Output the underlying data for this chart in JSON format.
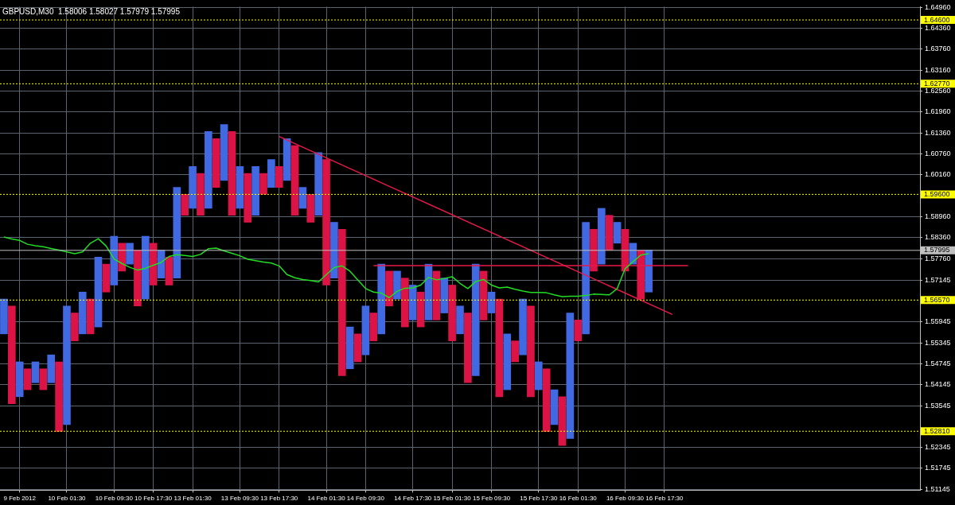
{
  "chart_data": {
    "type": "bar",
    "title": "GBPUSD,M30  1.58006 1.58027 1.57979 1.57995",
    "categories": [
      null,
      null,
      "9 Feb 2012",
      null,
      null,
      null,
      null,
      null,
      "10 Feb 01:30",
      null,
      null,
      null,
      null,
      null,
      "10 Feb 09:30",
      null,
      null,
      null,
      null,
      "10 Feb 17:30",
      null,
      null,
      null,
      null,
      "13 Feb 01:30",
      null,
      null,
      null,
      null,
      null,
      "13 Feb 09:30",
      null,
      null,
      null,
      null,
      "13 Feb 17:30",
      null,
      null,
      null,
      null,
      null,
      "14 Feb 01:30",
      null,
      null,
      null,
      null,
      "14 Feb 09:30",
      null,
      null,
      null,
      null,
      null,
      "14 Feb 17:30",
      null,
      null,
      null,
      null,
      "15 Feb 01:30",
      null,
      null,
      null,
      null,
      "15 Feb 09:30",
      null,
      null,
      null,
      null,
      null,
      "15 Feb 17:30",
      null,
      null,
      null,
      null,
      "16 Feb 01:30",
      null,
      null,
      null,
      null,
      null,
      "16 Feb 09:30",
      null,
      null,
      null,
      null,
      "16 Feb 17:30",
      null,
      null,
      null,
      null,
      null,
      null,
      null,
      null,
      null,
      null,
      null,
      null,
      null,
      null,
      null,
      null,
      null,
      null,
      null,
      null,
      null,
      null,
      null,
      null,
      null,
      null,
      null,
      null,
      null,
      null,
      null,
      null
    ],
    "ylim": [
      1.5112,
      1.6498
    ],
    "yticks": [
      {
        "value": 1.6496,
        "label": "1.64960"
      },
      {
        "value": 1.6436,
        "label": "1.64360"
      },
      {
        "value": 1.6376,
        "label": "1.63760"
      },
      {
        "value": 1.6316,
        "label": "1.63160"
      },
      {
        "value": 1.6256,
        "label": "1.62560"
      },
      {
        "value": 1.6196,
        "label": "1.61960"
      },
      {
        "value": 1.6136,
        "label": "1.61360"
      },
      {
        "value": 1.6076,
        "label": "1.60760"
      },
      {
        "value": 1.6016,
        "label": "1.60160"
      },
      {
        "value": 1.5896,
        "label": "1.58960"
      },
      {
        "value": 1.5836,
        "label": "1.58360"
      },
      {
        "value": 1.5776,
        "label": "1.57760"
      },
      {
        "value": 1.57145,
        "label": "1.57145"
      },
      {
        "value": 1.55945,
        "label": "1.55945"
      },
      {
        "value": 1.55345,
        "label": "1.55345"
      },
      {
        "value": 1.54745,
        "label": "1.54745"
      },
      {
        "value": 1.54145,
        "label": "1.54145"
      },
      {
        "value": 1.53545,
        "label": "1.53545"
      },
      {
        "value": 1.52345,
        "label": "1.52345"
      },
      {
        "value": 1.51745,
        "label": "1.51745"
      },
      {
        "value": 1.51145,
        "label": "1.51145"
      }
    ],
    "grid": true,
    "legend": false,
    "marker": "none",
    "ref_lines": [
      {
        "axis": "y",
        "value": 1.646,
        "label": "1.64600",
        "color": "#ffff00",
        "line_style": "dotted"
      },
      {
        "axis": "y",
        "value": 1.6277,
        "label": "1.62770",
        "color": "#ffff00",
        "line_style": "dotted"
      },
      {
        "axis": "y",
        "value": 1.596,
        "label": "1.59600",
        "color": "#ffff00",
        "line_style": "dotted"
      },
      {
        "axis": "y",
        "value": 1.5657,
        "label": "1.56570",
        "color": "#ffff00",
        "line_style": "dotted"
      },
      {
        "axis": "y",
        "value": 1.5281,
        "label": "1.52810",
        "color": "#ffff00",
        "line_style": "dotted"
      },
      {
        "axis": "y",
        "value": 1.57995,
        "label": "1.57995",
        "color": "#c0c0c0",
        "line_style": "solid"
      }
    ],
    "series": [
      {
        "base": [
          1.556,
          1.536,
          1.538,
          1.54,
          1.542,
          1.54,
          1.542,
          1.528,
          1.53,
          1.554,
          1.556,
          1.556,
          1.558,
          1.568,
          1.57,
          1.574,
          1.576,
          1.564,
          1.566,
          1.57,
          1.572,
          1.57,
          1.572,
          1.59,
          1.592,
          1.59,
          1.592,
          1.598,
          1.6,
          1.59,
          1.592,
          1.588,
          1.59,
          1.596,
          1.598,
          1.598,
          1.6,
          1.59,
          1.592,
          1.588,
          1.59,
          1.57,
          1.572,
          1.544,
          1.546,
          1.548,
          1.55,
          1.554,
          1.556,
          1.564,
          1.566,
          1.558,
          1.56,
          1.558,
          1.56,
          1.56,
          1.562,
          1.554,
          1.556,
          1.542,
          1.544,
          1.56,
          1.562,
          1.538,
          1.54,
          1.548,
          1.55,
          1.538,
          1.54,
          1.528,
          1.53,
          1.524,
          1.526,
          1.554,
          1.556,
          1.574,
          1.576,
          1.58,
          1.582,
          1.574,
          1.576,
          1.566,
          1.568,
          null,
          null,
          null,
          null,
          null,
          null,
          null,
          null,
          null,
          null,
          null,
          null,
          null,
          null,
          null,
          null,
          null,
          null,
          null,
          null,
          null,
          null,
          null,
          null,
          null,
          null,
          null,
          null,
          null,
          null,
          null,
          null,
          null,
          null
        ],
        "values": [
          0.01,
          0.028,
          0.01,
          0.006,
          0.006,
          0.006,
          0.008,
          0.02,
          0.034,
          0.008,
          0.012,
          0.01,
          0.02,
          0.008,
          0.014,
          0.008,
          0.006,
          0.016,
          0.018,
          0.012,
          0.008,
          0.008,
          0.026,
          0.006,
          0.012,
          0.012,
          0.022,
          0.014,
          0.016,
          0.024,
          0.012,
          0.014,
          0.014,
          0.006,
          0.008,
          0.006,
          0.012,
          0.02,
          0.006,
          0.008,
          0.018,
          0.036,
          0.016,
          0.042,
          0.012,
          0.008,
          0.014,
          0.008,
          0.02,
          0.01,
          0.008,
          0.014,
          0.01,
          0.01,
          0.016,
          0.014,
          0.01,
          0.016,
          0.008,
          0.02,
          0.032,
          0.014,
          0.006,
          0.028,
          0.016,
          0.006,
          0.016,
          0.026,
          0.008,
          0.018,
          0.01,
          0.014,
          0.036,
          0.006,
          0.032,
          0.012,
          0.016,
          0.01,
          0.006,
          0.012,
          0.006,
          0.014,
          0.012,
          null,
          null,
          null,
          null,
          null,
          null,
          null,
          null,
          null,
          null,
          null,
          null,
          null,
          null,
          null,
          null,
          null,
          null,
          null,
          null,
          null,
          null,
          null,
          null,
          null,
          null,
          null,
          null,
          null,
          null,
          null,
          null,
          null,
          null
        ],
        "colors": [
          "#4169e1",
          "#dc1446",
          "#4169e1",
          "#dc1446",
          "#4169e1",
          "#dc1446",
          "#4169e1",
          "#dc1446",
          "#4169e1",
          "#dc1446",
          "#4169e1",
          "#dc1446",
          "#4169e1",
          "#dc1446",
          "#4169e1",
          "#dc1446",
          "#4169e1",
          "#dc1446",
          "#4169e1",
          "#dc1446",
          "#4169e1",
          "#dc1446",
          "#4169e1",
          "#dc1446",
          "#4169e1",
          "#dc1446",
          "#4169e1",
          "#dc1446",
          "#4169e1",
          "#dc1446",
          "#4169e1",
          "#dc1446",
          "#4169e1",
          "#dc1446",
          "#4169e1",
          "#dc1446",
          "#4169e1",
          "#dc1446",
          "#4169e1",
          "#dc1446",
          "#4169e1",
          "#dc1446",
          "#4169e1",
          "#dc1446",
          "#4169e1",
          "#dc1446",
          "#4169e1",
          "#dc1446",
          "#4169e1",
          "#dc1446",
          "#4169e1",
          "#dc1446",
          "#4169e1",
          "#dc1446",
          "#4169e1",
          "#dc1446",
          "#4169e1",
          "#dc1446",
          "#4169e1",
          "#dc1446",
          "#4169e1",
          "#dc1446",
          "#4169e1",
          "#dc1446",
          "#4169e1",
          "#dc1446",
          "#4169e1",
          "#dc1446",
          "#4169e1",
          "#dc1446",
          "#4169e1",
          "#dc1446",
          "#4169e1",
          "#dc1446",
          "#4169e1",
          "#dc1446",
          "#4169e1",
          "#dc1446",
          "#4169e1",
          "#dc1446",
          "#4169e1",
          "#dc1446",
          "#4169e1",
          null,
          null,
          null,
          null,
          null,
          null,
          null,
          null,
          null,
          null,
          null,
          null,
          null,
          null,
          null,
          null,
          null,
          null,
          null,
          null,
          null,
          null,
          null,
          null,
          null,
          null,
          null,
          null,
          null,
          null,
          null,
          null,
          null,
          null
        ]
      },
      {
        "type": "line",
        "color": "#22dd22",
        "values": [
          1.5838,
          1.5832,
          1.5828,
          1.5817,
          1.5813,
          1.581,
          1.5805,
          1.58,
          1.5795,
          1.579,
          1.5795,
          1.582,
          1.5833,
          1.5812,
          1.5775,
          1.5762,
          1.5751,
          1.5743,
          1.5748,
          1.5757,
          1.5765,
          1.5782,
          1.5787,
          1.5785,
          1.5782,
          1.5788,
          1.5804,
          1.5806,
          1.5798,
          1.5791,
          1.5784,
          1.5774,
          1.577,
          1.5766,
          1.5763,
          1.5755,
          1.573,
          1.5721,
          1.5716,
          1.5713,
          1.5709,
          1.573,
          1.575,
          1.5755,
          1.574,
          1.5715,
          1.569,
          1.568,
          1.5677,
          1.5664,
          1.5682,
          1.5691,
          1.5692,
          1.57,
          1.5722,
          1.5715,
          1.5719,
          1.5724,
          1.5705,
          1.569,
          1.571,
          1.5716,
          1.57,
          1.5692,
          1.5694,
          1.5688,
          1.5683,
          1.5679,
          1.5679,
          1.5678,
          1.5672,
          1.5667,
          1.5668,
          1.5668,
          1.567,
          1.5674,
          1.5673,
          1.5672,
          1.569,
          1.5747,
          1.5767,
          1.5786,
          1.579,
          null,
          null,
          null,
          null,
          null,
          null,
          null,
          null,
          null,
          null,
          null,
          null,
          null,
          null,
          null,
          null,
          null,
          null,
          null,
          null,
          null,
          null,
          null,
          null,
          null,
          null,
          null,
          null,
          null,
          null,
          null,
          null,
          null,
          null
        ]
      },
      {
        "type": "line",
        "color": "#e8194a",
        "values": [
          null,
          null,
          null,
          null,
          null,
          null,
          null,
          null,
          null,
          null,
          null,
          null,
          null,
          null,
          null,
          null,
          null,
          null,
          null,
          null,
          null,
          null,
          null,
          null,
          null,
          null,
          null,
          null,
          null,
          null,
          null,
          null,
          null,
          null,
          null,
          1.6126,
          null,
          null,
          null,
          null,
          null,
          null,
          null,
          null,
          null,
          null,
          null,
          null,
          null,
          null,
          null,
          null,
          null,
          null,
          null,
          null,
          null,
          null,
          null,
          null,
          null,
          null,
          null,
          null,
          null,
          null,
          null,
          null,
          null,
          null,
          null,
          null,
          null,
          null,
          null,
          null,
          null,
          null,
          null,
          null,
          null,
          null,
          null,
          null,
          null,
          1.5616,
          null,
          null,
          null,
          null,
          null,
          null,
          null,
          null,
          null,
          null,
          null,
          null,
          null,
          null,
          null,
          null,
          null,
          null,
          null,
          null,
          null,
          null,
          null,
          null,
          null,
          null,
          null,
          null,
          null,
          null,
          null
        ]
      },
      {
        "type": "line",
        "color": "#e8194a",
        "values": [
          null,
          null,
          null,
          null,
          null,
          null,
          null,
          null,
          null,
          null,
          null,
          null,
          null,
          null,
          null,
          null,
          null,
          null,
          null,
          null,
          null,
          null,
          null,
          null,
          null,
          null,
          null,
          null,
          null,
          null,
          null,
          null,
          null,
          null,
          null,
          null,
          null,
          null,
          null,
          null,
          null,
          null,
          null,
          null,
          null,
          null,
          null,
          1.5756,
          null,
          null,
          null,
          null,
          null,
          null,
          null,
          null,
          null,
          null,
          null,
          null,
          null,
          null,
          null,
          null,
          null,
          null,
          null,
          null,
          null,
          null,
          null,
          null,
          null,
          null,
          null,
          null,
          null,
          null,
          null,
          null,
          null,
          null,
          null,
          null,
          null,
          null,
          null,
          1.5756,
          null,
          null,
          null,
          null,
          null,
          null,
          null,
          null,
          null,
          null,
          null,
          null,
          null,
          null,
          null,
          null,
          null,
          null,
          null,
          null,
          null,
          null,
          null,
          null,
          null,
          null,
          null,
          null,
          null
        ]
      }
    ]
  }
}
